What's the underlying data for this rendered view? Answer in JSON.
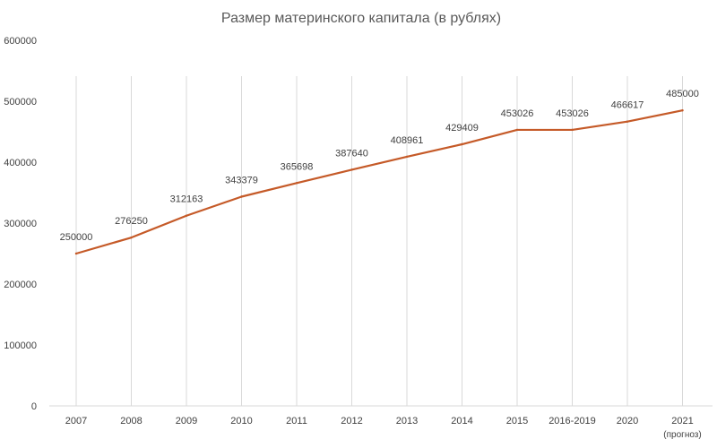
{
  "chart_data": {
    "type": "line",
    "title": "Размер материнского капитала (в рублях)",
    "xlabel": "",
    "ylabel": "",
    "categories": [
      "2007",
      "2008",
      "2009",
      "2010",
      "2011",
      "2012",
      "2013",
      "2014",
      "2015",
      "2016-2019",
      "2020",
      "2021"
    ],
    "category_notes": [
      "",
      "",
      "",
      "",
      "",
      "",
      "",
      "",
      "",
      "",
      "",
      "(прогноз)"
    ],
    "series": [
      {
        "values": [
          250000,
          276250,
          312163,
          343379,
          365698,
          387640,
          408961,
          429409,
          453026,
          453026,
          466617,
          485000
        ],
        "color": "#C55A28"
      }
    ],
    "data_labels": [
      "250000",
      "276250",
      "312163",
      "343379",
      "365698",
      "387640",
      "408961",
      "429409",
      "453026",
      "453026",
      "466617",
      "485000"
    ],
    "ylim": [
      0,
      600000
    ],
    "yticks": [
      "0",
      "100000",
      "200000",
      "300000",
      "400000",
      "500000",
      "600000"
    ],
    "grid": "vertical lines at categories",
    "legend": "none"
  }
}
